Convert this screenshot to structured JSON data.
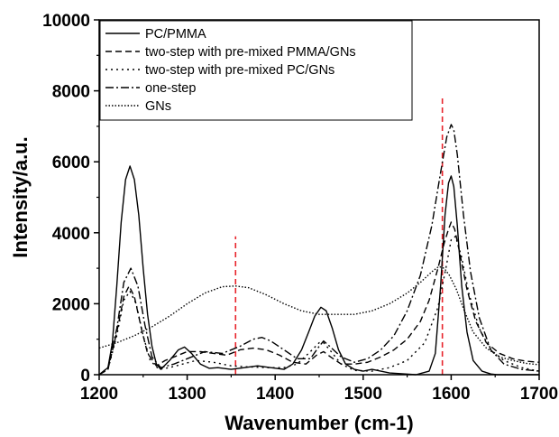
{
  "chart_data": {
    "type": "line",
    "xlabel": "Wavenumber (cm-1)",
    "ylabel": "Intensity/a.u.",
    "xlim": [
      1200,
      1700
    ],
    "ylim": [
      0,
      10000
    ],
    "x_ticks": [
      "1200",
      "1300",
      "1400",
      "1500",
      "1600",
      "1700"
    ],
    "y_ticks": [
      "0",
      "2000",
      "4000",
      "6000",
      "8000",
      "10000"
    ],
    "legend_position": "top-left",
    "grid": false,
    "reference_lines": [
      {
        "x": 1355,
        "y_range": [
          0,
          3900
        ],
        "color": "#e8232b",
        "style": "dashed"
      },
      {
        "x": 1590,
        "y_range": [
          0,
          7800
        ],
        "color": "#e8232b",
        "style": "dashed"
      }
    ],
    "series": [
      {
        "name": "PC/PMMA",
        "dash": "solid",
        "x": [
          1200,
          1210,
          1215,
          1220,
          1225,
          1230,
          1235,
          1240,
          1245,
          1250,
          1255,
          1260,
          1265,
          1270,
          1280,
          1290,
          1297,
          1305,
          1315,
          1325,
          1335,
          1350,
          1365,
          1380,
          1395,
          1410,
          1420,
          1430,
          1438,
          1445,
          1452,
          1458,
          1465,
          1472,
          1480,
          1490,
          1500,
          1510,
          1520,
          1530,
          1560,
          1575,
          1582,
          1588,
          1593,
          1597,
          1600,
          1603,
          1607,
          1612,
          1618,
          1625,
          1635,
          1645,
          1652,
          1660,
          1700
        ],
        "y": [
          0,
          200,
          900,
          2500,
          4300,
          5500,
          5880,
          5500,
          4500,
          3000,
          1700,
          800,
          300,
          150,
          400,
          700,
          780,
          600,
          300,
          180,
          200,
          150,
          200,
          250,
          200,
          150,
          300,
          700,
          1200,
          1650,
          1900,
          1800,
          1300,
          700,
          300,
          150,
          100,
          150,
          100,
          50,
          0,
          100,
          600,
          2500,
          4500,
          5400,
          5600,
          5300,
          4200,
          2500,
          1200,
          400,
          100,
          20,
          0,
          0,
          0
        ]
      },
      {
        "name": "two-step with pre-mixed PMMA/GNs",
        "dash": "dashed",
        "x": [
          1200,
          1210,
          1220,
          1228,
          1234,
          1240,
          1248,
          1255,
          1265,
          1275,
          1290,
          1300,
          1315,
          1330,
          1345,
          1360,
          1375,
          1390,
          1405,
          1420,
          1435,
          1447,
          1455,
          1463,
          1475,
          1490,
          1505,
          1520,
          1535,
          1550,
          1565,
          1575,
          1585,
          1592,
          1597,
          1600,
          1604,
          1610,
          1618,
          1628,
          1640,
          1655,
          1670,
          1685,
          1700
        ],
        "y": [
          0,
          150,
          1200,
          2200,
          2500,
          2200,
          1300,
          600,
          250,
          400,
          550,
          650,
          650,
          600,
          550,
          700,
          750,
          700,
          550,
          350,
          300,
          550,
          650,
          500,
          300,
          300,
          350,
          500,
          700,
          1000,
          1500,
          2100,
          3000,
          3700,
          4100,
          4300,
          4100,
          3400,
          2400,
          1500,
          900,
          600,
          450,
          380,
          350
        ]
      },
      {
        "name": "two-step with pre-mixed PC/GNs",
        "dash": "dotted",
        "x": [
          1200,
          1210,
          1220,
          1228,
          1235,
          1242,
          1250,
          1258,
          1268,
          1280,
          1295,
          1310,
          1330,
          1350,
          1370,
          1390,
          1410,
          1425,
          1440,
          1450,
          1455,
          1462,
          1475,
          1490,
          1510,
          1530,
          1550,
          1570,
          1585,
          1594,
          1600,
          1605,
          1612,
          1620,
          1632,
          1645,
          1660,
          1680,
          1700
        ],
        "y": [
          0,
          150,
          1100,
          2100,
          2350,
          2000,
          1100,
          400,
          150,
          200,
          300,
          400,
          350,
          250,
          220,
          200,
          200,
          300,
          650,
          900,
          900,
          700,
          300,
          120,
          100,
          200,
          400,
          900,
          1900,
          3000,
          3800,
          3900,
          3300,
          2300,
          1300,
          700,
          400,
          200,
          100
        ]
      },
      {
        "name": "one-step",
        "dash": "dashdot",
        "x": [
          1200,
          1210,
          1220,
          1228,
          1236,
          1244,
          1252,
          1260,
          1270,
          1285,
          1300,
          1320,
          1340,
          1360,
          1375,
          1385,
          1395,
          1410,
          1425,
          1440,
          1450,
          1455,
          1462,
          1475,
          1490,
          1505,
          1520,
          1535,
          1550,
          1565,
          1578,
          1588,
          1595,
          1600,
          1603,
          1607,
          1614,
          1622,
          1632,
          1645,
          1660,
          1680,
          1700
        ],
        "y": [
          0,
          200,
          1300,
          2600,
          3000,
          2500,
          1400,
          500,
          200,
          300,
          450,
          650,
          600,
          800,
          1000,
          1050,
          950,
          700,
          450,
          450,
          800,
          950,
          800,
          500,
          350,
          450,
          700,
          1100,
          1800,
          2800,
          4200,
          5700,
          6700,
          7050,
          6900,
          6200,
          4500,
          2900,
          1600,
          700,
          300,
          150,
          100
        ]
      },
      {
        "name": "GNs",
        "dash": "densedot",
        "x": [
          1200,
          1220,
          1240,
          1260,
          1280,
          1300,
          1320,
          1340,
          1355,
          1370,
          1390,
          1410,
          1430,
          1450,
          1470,
          1490,
          1510,
          1530,
          1550,
          1565,
          1578,
          1586,
          1592,
          1598,
          1606,
          1615,
          1625,
          1640,
          1655,
          1670,
          1685,
          1700
        ],
        "y": [
          750,
          900,
          1100,
          1350,
          1650,
          2000,
          2300,
          2480,
          2500,
          2450,
          2250,
          2000,
          1800,
          1700,
          1700,
          1700,
          1800,
          2000,
          2300,
          2600,
          2900,
          3050,
          3000,
          2800,
          2400,
          1800,
          1200,
          750,
          500,
          400,
          320,
          280
        ]
      }
    ]
  }
}
